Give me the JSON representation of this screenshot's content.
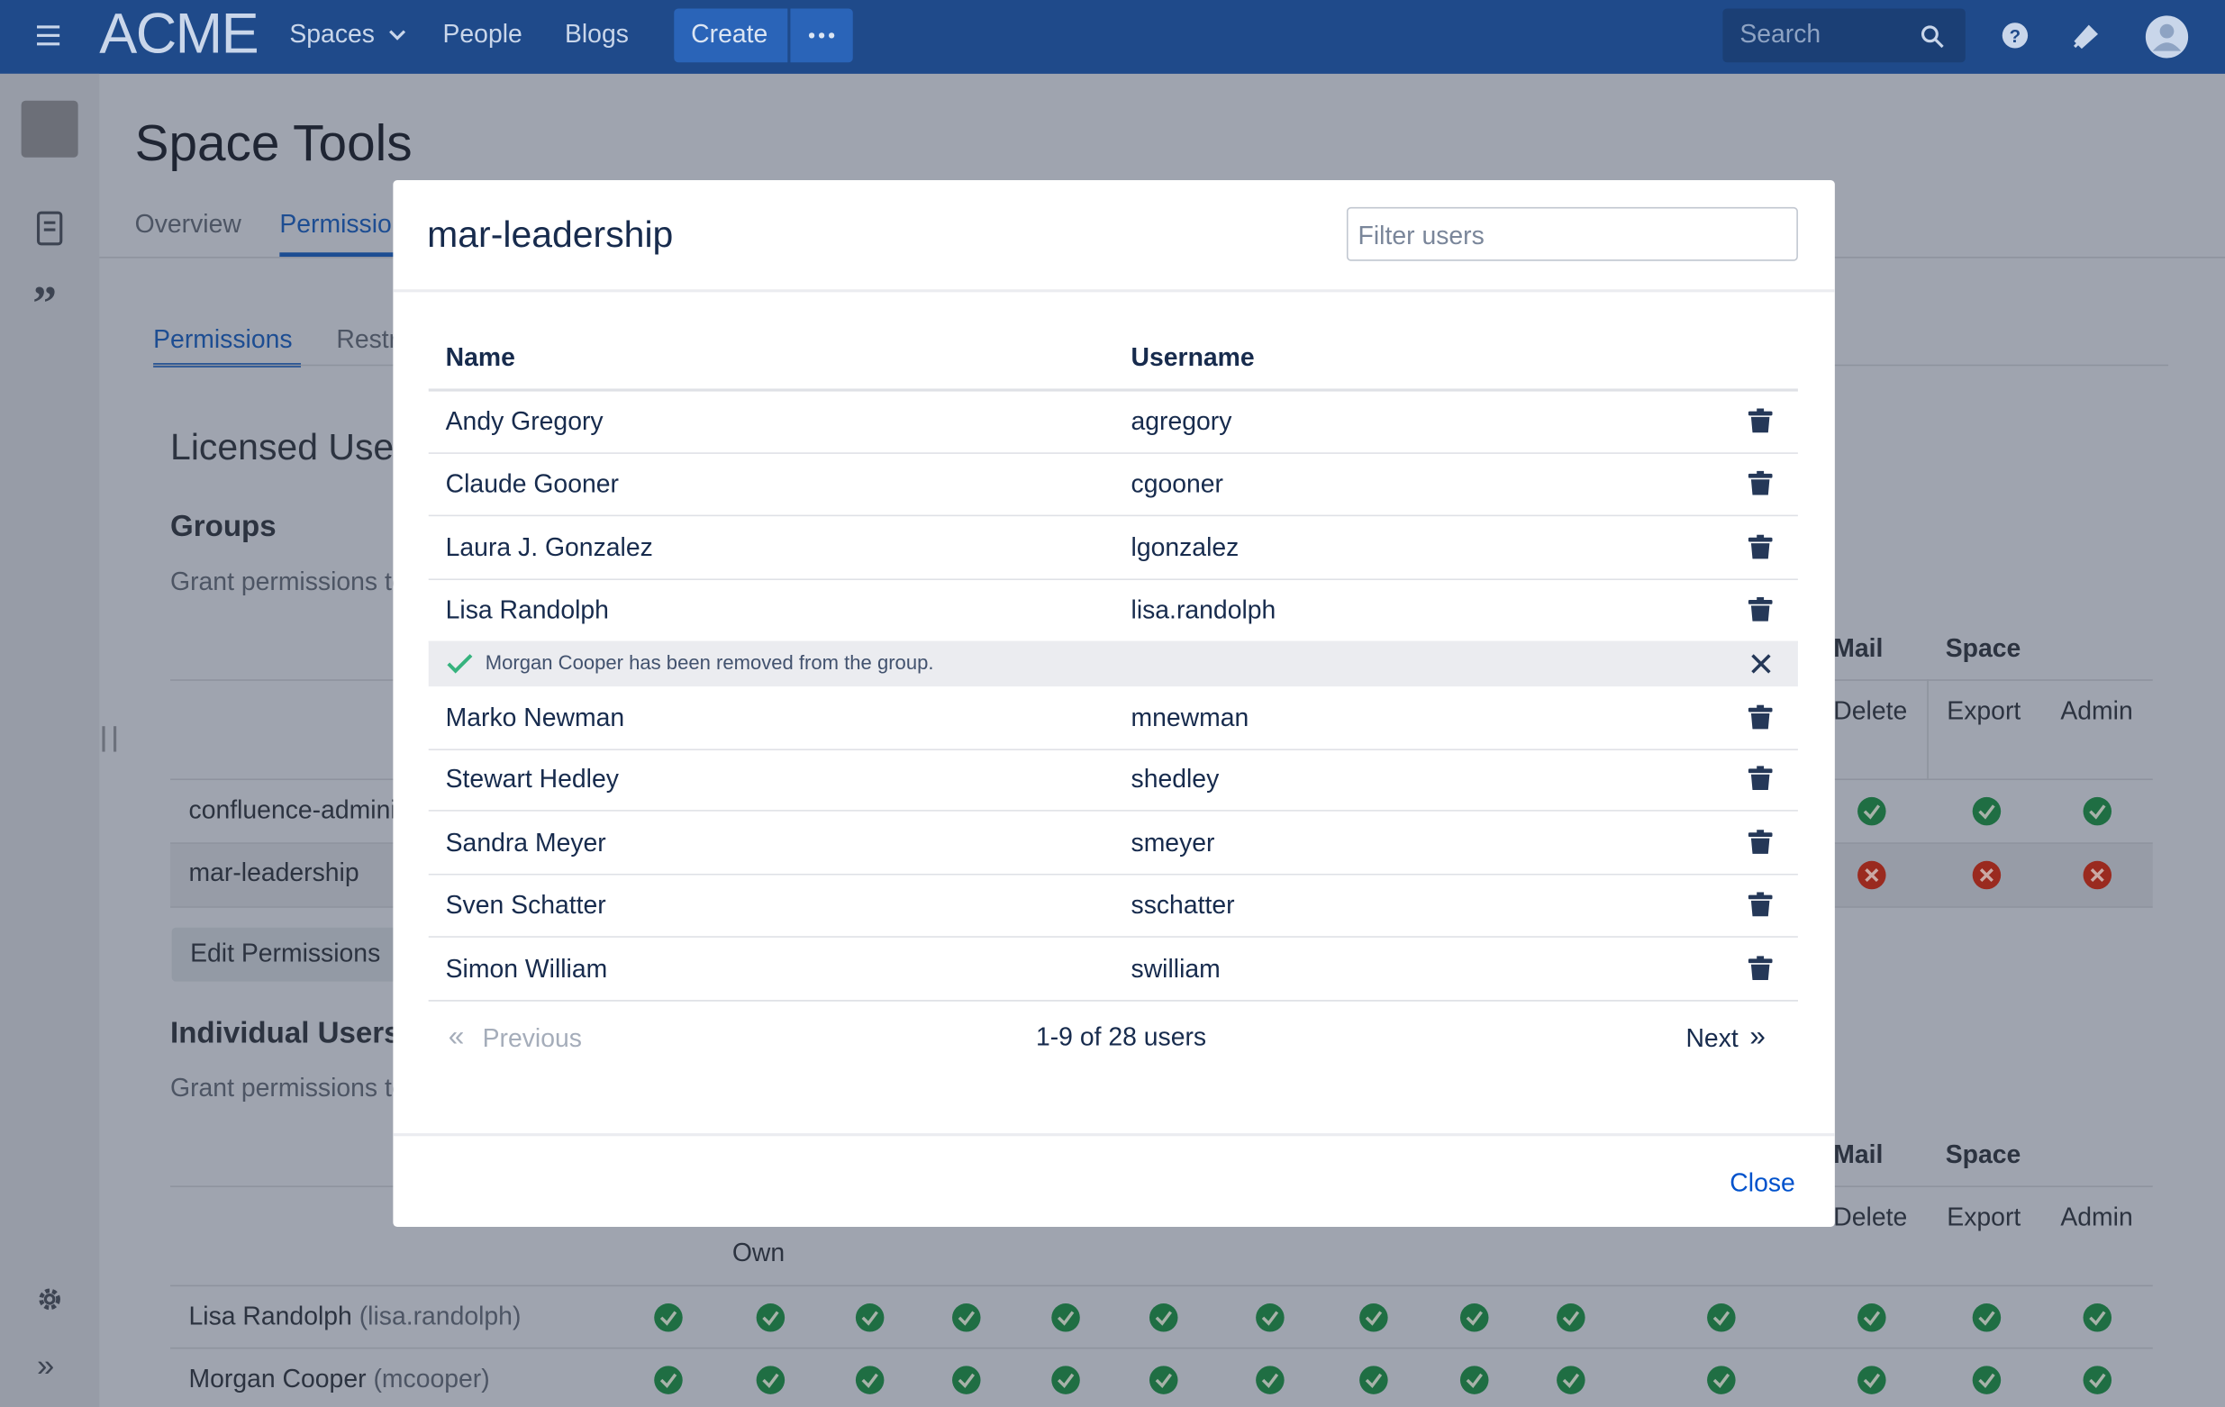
{
  "nav": {
    "logo": "ACME",
    "items": [
      "Spaces",
      "People",
      "Blogs"
    ],
    "create": "Create",
    "search": "Search"
  },
  "page": {
    "title": "Space Tools",
    "tabs": [
      "Overview",
      "Permissions"
    ],
    "subtabs": [
      "Permissions",
      "Restrictions"
    ],
    "licensed_users": "Licensed Users",
    "groups": {
      "heading": "Groups",
      "description": "Grant permissions to groups",
      "column_groups": [
        "Mail",
        "Space"
      ],
      "columns": [
        "Delete",
        "Export",
        "Admin"
      ],
      "rows": [
        "confluence-administrators",
        "mar-leadership"
      ],
      "edit_button": "Edit Permissions"
    },
    "individual": {
      "heading": "Individual Users",
      "description": "Grant permissions to individual users",
      "column_groups": [
        "Mail",
        "Space"
      ],
      "columns": [
        "Delete",
        "Export",
        "Admin",
        "Own"
      ],
      "rows": [
        {
          "name": "Lisa Randolph",
          "username": "(lisa.randolph)"
        },
        {
          "name": "Morgan Cooper",
          "username": "(mcooper)"
        }
      ]
    }
  },
  "modal": {
    "title": "mar-leadership",
    "filter_placeholder": "Filter users",
    "columns": [
      "Name",
      "Username"
    ],
    "members": [
      {
        "name": "Andy Gregory",
        "username": "agregory"
      },
      {
        "name": "Claude Gooner",
        "username": "cgooner"
      },
      {
        "name": "Laura J. Gonzalez",
        "username": "lgonzalez"
      },
      {
        "name": "Lisa Randolph",
        "username": "lisa.randolph"
      },
      {
        "name": "Marko Newman",
        "username": "mnewman"
      },
      {
        "name": "Stewart Hedley",
        "username": "shedley"
      },
      {
        "name": "Sandra Meyer",
        "username": "smeyer"
      },
      {
        "name": "Sven Schatter",
        "username": "sschatter"
      },
      {
        "name": "Simon William",
        "username": "swilliam"
      }
    ],
    "notice": "Morgan Cooper has been removed from the group.",
    "pagination": {
      "previous": "Previous",
      "summary": "1-9 of 28 users",
      "next": "Next"
    },
    "close": "Close"
  }
}
